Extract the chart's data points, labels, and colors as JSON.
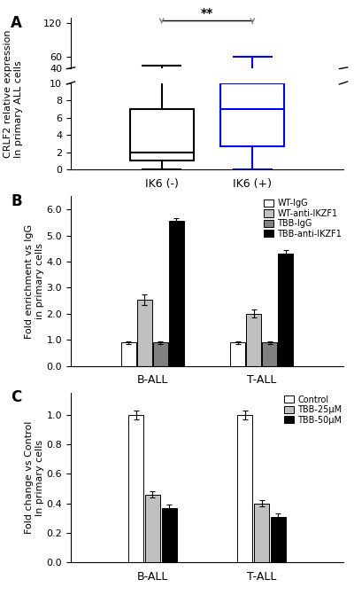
{
  "panel_A": {
    "ylabel": "CRLF2 relative expression\nIn primary ALL cells",
    "xlabel_labels": [
      "IK6 (-)",
      "IK6 (+)"
    ],
    "box1": {
      "color": "black",
      "whisker_low": 0,
      "q1": 1.0,
      "median": 2.0,
      "q3": 7.0,
      "whisker_high": 45
    },
    "box2": {
      "color": "blue",
      "whisker_low": 0,
      "q1": 2.7,
      "median": 7.0,
      "q3": 35,
      "whisker_high": 60
    },
    "yticks_bottom": [
      0,
      2,
      4,
      6,
      8,
      10
    ],
    "yticks_top": [
      40,
      60,
      120
    ],
    "significance": "**"
  },
  "panel_B": {
    "ylabel": "Fold enrichment vs IgG\nin primary cells",
    "groups": [
      "B-ALL",
      "T-ALL"
    ],
    "series": [
      "WT-IgG",
      "WT-anti-IKZF1",
      "TBB-IgG",
      "TBB-anti-IKZF1"
    ],
    "colors": [
      "white",
      "#c0c0c0",
      "#808080",
      "black"
    ],
    "values": {
      "B-ALL": [
        0.9,
        2.55,
        0.9,
        5.55
      ],
      "T-ALL": [
        0.9,
        2.0,
        0.9,
        4.3
      ]
    },
    "errors": {
      "B-ALL": [
        0.05,
        0.2,
        0.05,
        0.1
      ],
      "T-ALL": [
        0.05,
        0.15,
        0.05,
        0.15
      ]
    },
    "ylim": [
      0,
      6.5
    ],
    "yticks": [
      0.0,
      1.0,
      2.0,
      3.0,
      4.0,
      5.0,
      6.0
    ]
  },
  "panel_C": {
    "ylabel": "Fold change vs Control\nIn primary cells",
    "groups": [
      "B-ALL",
      "T-ALL"
    ],
    "series": [
      "Control",
      "TBB-25μM",
      "TBB-50μM"
    ],
    "colors": [
      "white",
      "#c0c0c0",
      "black"
    ],
    "values": {
      "B-ALL": [
        1.0,
        0.46,
        0.37
      ],
      "T-ALL": [
        1.0,
        0.4,
        0.31
      ]
    },
    "errors": {
      "B-ALL": [
        0.03,
        0.02,
        0.02
      ],
      "T-ALL": [
        0.03,
        0.02,
        0.02
      ]
    },
    "ylim": [
      0,
      1.15
    ],
    "yticks": [
      0.0,
      0.2,
      0.4,
      0.6,
      0.8,
      1.0
    ]
  }
}
